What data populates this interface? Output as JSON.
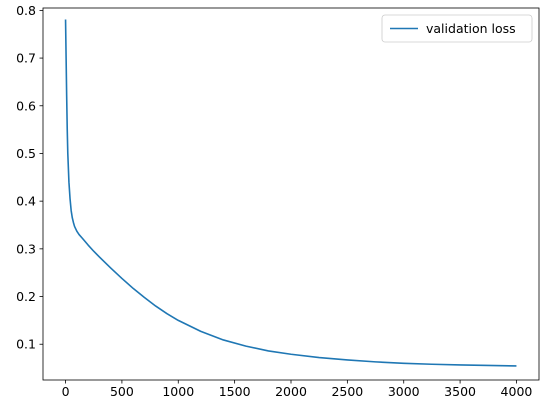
{
  "chart_data": {
    "type": "line",
    "title": "",
    "xlabel": "",
    "ylabel": "",
    "xlim": [
      -200,
      4200
    ],
    "ylim": [
      0.025,
      0.805
    ],
    "xticks": [
      0,
      500,
      1000,
      1500,
      2000,
      2500,
      3000,
      3500,
      4000
    ],
    "yticks": [
      0.1,
      0.2,
      0.3,
      0.4,
      0.5,
      0.6,
      0.7,
      0.8
    ],
    "grid": false,
    "legend_position": "upper right",
    "series": [
      {
        "name": "validation loss",
        "color": "#1f77b4",
        "x": [
          0,
          5,
          10,
          15,
          20,
          30,
          40,
          50,
          60,
          70,
          80,
          100,
          120,
          150,
          200,
          250,
          300,
          400,
          500,
          600,
          700,
          800,
          900,
          1000,
          1200,
          1400,
          1600,
          1800,
          2000,
          2250,
          2500,
          2750,
          3000,
          3250,
          3500,
          3750,
          4000
        ],
        "y": [
          0.781,
          0.7,
          0.62,
          0.55,
          0.5,
          0.44,
          0.405,
          0.38,
          0.365,
          0.355,
          0.347,
          0.337,
          0.33,
          0.322,
          0.308,
          0.295,
          0.283,
          0.26,
          0.238,
          0.217,
          0.198,
          0.18,
          0.164,
          0.15,
          0.127,
          0.109,
          0.096,
          0.086,
          0.079,
          0.072,
          0.067,
          0.063,
          0.06,
          0.058,
          0.0565,
          0.0555,
          0.0545
        ]
      }
    ]
  }
}
